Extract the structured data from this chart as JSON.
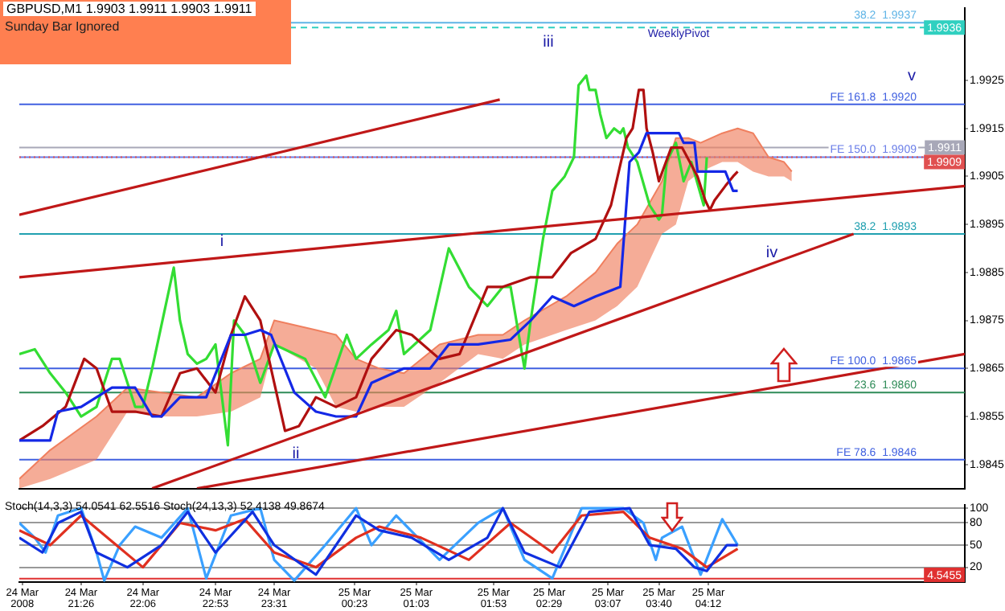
{
  "chart_data": [
    {
      "type": "line",
      "title": "GBPUSD,M1  1.9903 1.9911 1.9903 1.9911",
      "subtitle": "Sunday Bar Ignored",
      "tick_labels": "y",
      "grid": false,
      "xlim": [
        "2008-03-24T20:46",
        "2008-03-25T06:58"
      ],
      "ylim": [
        1.984,
        1.994
      ],
      "yticks": [
        1.9845,
        1.9855,
        1.9865,
        1.9875,
        1.9885,
        1.9895,
        1.9905,
        1.9915,
        1.9925
      ],
      "series": [
        {
          "color": "#f08060",
          "x": [
            "2008-03-24T20:46",
            "2008-03-24T21:06",
            "2008-03-24T21:36",
            "2008-03-24T21:56",
            "2008-03-24T22:18",
            "2008-03-24T22:41",
            "2008-03-24T23:03",
            "2008-03-24T23:22",
            "2008-03-24T23:31",
            "2008-03-24T23:58",
            "2008-03-25T00:11",
            "2008-03-25T00:24",
            "2008-03-25T00:39",
            "2008-03-25T00:55",
            "2008-03-25T01:18",
            "2008-03-25T01:43",
            "2008-03-25T01:59",
            "2008-03-25T02:13",
            "2008-03-25T02:40",
            "2008-03-25T02:59",
            "2008-03-25T03:13",
            "2008-03-25T03:26",
            "2008-03-25T03:42",
            "2008-03-25T03:51",
            "2008-03-25T03:59",
            "2008-03-25T04:07",
            "2008-03-25T04:21",
            "2008-03-25T04:31",
            "2008-03-25T04:41",
            "2008-03-25T04:51",
            "2008-03-25T05:01",
            "2008-03-25T05:06"
          ],
          "values": [
            1.9842,
            1.9848,
            1.9855,
            1.9861,
            1.986,
            1.9859,
            1.9864,
            1.9867,
            1.9875,
            1.9873,
            1.9872,
            1.9867,
            1.9865,
            1.9864,
            1.987,
            1.9872,
            1.9872,
            1.9875,
            1.988,
            1.9885,
            1.9891,
            1.9895,
            1.9904,
            1.9913,
            1.9913,
            1.9912,
            1.9914,
            1.9915,
            1.9914,
            1.9909,
            1.9908,
            1.9906
          ],
          "lower": [
            1.984,
            1.9842,
            1.9846,
            1.9856,
            1.9855,
            1.9855,
            1.9856,
            1.9859,
            1.987,
            1.9865,
            1.9857,
            1.9856,
            1.9857,
            1.9857,
            1.9862,
            1.9868,
            1.9867,
            1.987,
            1.9873,
            1.9875,
            1.9878,
            1.9882,
            1.9893,
            1.9895,
            1.9904,
            1.9906,
            1.9908,
            1.9908,
            1.9906,
            1.9905,
            1.9905,
            1.9904
          ],
          "upper": [
            1.9842,
            1.9848,
            1.9855,
            1.9861,
            1.986,
            1.9859,
            1.9864,
            1.9867,
            1.9875,
            1.9873,
            1.9872,
            1.9867,
            1.9865,
            1.9864,
            1.987,
            1.9872,
            1.9872,
            1.9875,
            1.988,
            1.9885,
            1.9891,
            1.9895,
            1.9904,
            1.9913,
            1.9913,
            1.9912,
            1.9914,
            1.9915,
            1.9914,
            1.9909,
            1.9908,
            1.9906
          ]
        },
        {
          "color": "#33dd33",
          "x": [
            "2008-03-24T20:46",
            "2008-03-24T20:56",
            "2008-03-24T21:06",
            "2008-03-24T21:16",
            "2008-03-24T21:26",
            "2008-03-24T21:36",
            "2008-03-24T21:46",
            "2008-03-24T21:51",
            "2008-03-24T21:56",
            "2008-03-24T22:01",
            "2008-03-24T22:06",
            "2008-03-24T22:12",
            "2008-03-24T22:26",
            "2008-03-24T22:30",
            "2008-03-24T22:35",
            "2008-03-24T22:41",
            "2008-03-24T22:47",
            "2008-03-24T22:53",
            "2008-03-24T23:01",
            "2008-03-24T23:05",
            "2008-03-24T23:12",
            "2008-03-24T23:22",
            "2008-03-24T23:31",
            "2008-03-24T23:51",
            "2008-03-25T00:04",
            "2008-03-25T00:18",
            "2008-03-25T00:24",
            "2008-03-25T00:34",
            "2008-03-25T00:45",
            "2008-03-25T00:50",
            "2008-03-25T00:55",
            "2008-03-25T01:12",
            "2008-03-25T01:24",
            "2008-03-25T01:37",
            "2008-03-25T01:49",
            "2008-03-25T01:59",
            "2008-03-25T02:04",
            "2008-03-25T02:13",
            "2008-03-25T02:17",
            "2008-03-25T02:25",
            "2008-03-25T02:31",
            "2008-03-25T02:39",
            "2008-03-25T02:45",
            "2008-03-25T02:48",
            "2008-03-25T02:53",
            "2008-03-25T02:55",
            "2008-03-25T02:59",
            "2008-03-25T03:02",
            "2008-03-25T03:06",
            "2008-03-25T03:11",
            "2008-03-25T03:15",
            "2008-03-25T03:17",
            "2008-03-25T03:20",
            "2008-03-25T03:26",
            "2008-03-25T03:34",
            "2008-03-25T03:40",
            "2008-03-25T03:42",
            "2008-03-25T03:45",
            "2008-03-25T03:51",
            "2008-03-25T03:56",
            "2008-03-25T04:01",
            "2008-03-25T04:09",
            "2008-03-25T04:11"
          ],
          "values": [
            1.9868,
            1.9869,
            1.9864,
            1.986,
            1.9855,
            1.9857,
            1.9867,
            1.9867,
            1.9862,
            1.9857,
            1.9857,
            1.9865,
            1.9886,
            1.9875,
            1.9868,
            1.9866,
            1.9867,
            1.987,
            1.9849,
            1.9875,
            1.9872,
            1.9862,
            1.987,
            1.9867,
            1.9859,
            1.9872,
            1.9867,
            1.987,
            1.9873,
            1.9877,
            1.9868,
            1.9873,
            1.989,
            1.9882,
            1.9878,
            1.9882,
            1.9882,
            1.9865,
            1.9875,
            1.9892,
            1.9902,
            1.9905,
            1.9909,
            1.9924,
            1.9926,
            1.9923,
            1.9923,
            1.9918,
            1.9913,
            1.9915,
            1.9914,
            1.9915,
            1.9911,
            1.9908,
            1.9899,
            1.9896,
            1.9897,
            1.9908,
            1.9912,
            1.9904,
            1.9908,
            1.9899,
            1.9909
          ]
        },
        {
          "color": "#b01010",
          "x": [
            "2008-03-24T20:46",
            "2008-03-24T21:01",
            "2008-03-24T21:16",
            "2008-03-24T21:28",
            "2008-03-24T21:36",
            "2008-03-24T21:46",
            "2008-03-24T22:01",
            "2008-03-24T22:18",
            "2008-03-24T22:30",
            "2008-03-24T22:41",
            "2008-03-24T22:53",
            "2008-03-24T23:03",
            "2008-03-24T23:12",
            "2008-03-24T23:22",
            "2008-03-24T23:31",
            "2008-03-24T23:38",
            "2008-03-24T23:47",
            "2008-03-24T23:58",
            "2008-03-25T00:11",
            "2008-03-25T00:24",
            "2008-03-25T00:34",
            "2008-03-25T00:50",
            "2008-03-25T01:00",
            "2008-03-25T01:18",
            "2008-03-25T01:31",
            "2008-03-25T01:49",
            "2008-03-25T01:59",
            "2008-03-25T02:08",
            "2008-03-25T02:17",
            "2008-03-25T02:31",
            "2008-03-25T02:43",
            "2008-03-25T02:59",
            "2008-03-25T03:09",
            "2008-03-25T03:19",
            "2008-03-25T03:23",
            "2008-03-25T03:27",
            "2008-03-25T03:30",
            "2008-03-25T03:32",
            "2008-03-25T03:36",
            "2008-03-25T03:40",
            "2008-03-25T03:48",
            "2008-03-25T03:55",
            "2008-03-25T04:05",
            "2008-03-25T04:10",
            "2008-03-25T04:13",
            "2008-03-25T04:16",
            "2008-03-25T04:23",
            "2008-03-25T04:28",
            "2008-03-25T04:31"
          ],
          "values": [
            1.985,
            1.9853,
            1.9857,
            1.9867,
            1.9865,
            1.9856,
            1.9856,
            1.9855,
            1.9864,
            1.9865,
            1.986,
            1.9872,
            1.988,
            1.9875,
            1.9862,
            1.9852,
            1.9853,
            1.9859,
            1.9857,
            1.9859,
            1.9867,
            1.9873,
            1.9872,
            1.9867,
            1.9868,
            1.9882,
            1.9882,
            1.9883,
            1.9884,
            1.9884,
            1.9889,
            1.9892,
            1.9899,
            1.9913,
            1.9915,
            1.9923,
            1.9923,
            1.9915,
            1.991,
            1.9904,
            1.9911,
            1.9911,
            1.9905,
            1.99,
            1.9898,
            1.99,
            1.9903,
            1.9905,
            1.9906
          ]
        },
        {
          "color": "#1428e6",
          "x": [
            "2008-03-24T20:46",
            "2008-03-24T21:06",
            "2008-03-24T21:11",
            "2008-03-24T21:26",
            "2008-03-24T21:46",
            "2008-03-24T22:01",
            "2008-03-24T22:12",
            "2008-03-24T22:18",
            "2008-03-24T22:30",
            "2008-03-24T22:47",
            "2008-03-24T23:03",
            "2008-03-24T23:12",
            "2008-03-24T23:22",
            "2008-03-24T23:29",
            "2008-03-24T23:44",
            "2008-03-24T23:58",
            "2008-03-25T00:11",
            "2008-03-25T00:24",
            "2008-03-25T00:34",
            "2008-03-25T00:55",
            "2008-03-25T01:12",
            "2008-03-25T01:24",
            "2008-03-25T01:43",
            "2008-03-25T02:04",
            "2008-03-25T02:17",
            "2008-03-25T02:31",
            "2008-03-25T02:45",
            "2008-03-25T02:59",
            "2008-03-25T03:15",
            "2008-03-25T03:21",
            "2008-03-25T03:27",
            "2008-03-25T03:32",
            "2008-03-25T03:53",
            "2008-03-25T03:56",
            "2008-03-25T04:03",
            "2008-03-25T04:05",
            "2008-03-25T04:23",
            "2008-03-25T04:28",
            "2008-03-25T04:31"
          ],
          "values": [
            1.985,
            1.985,
            1.9856,
            1.9857,
            1.9861,
            1.9861,
            1.9855,
            1.9855,
            1.9859,
            1.9859,
            1.9872,
            1.9872,
            1.9873,
            1.9872,
            1.986,
            1.9856,
            1.9855,
            1.9855,
            1.9862,
            1.9865,
            1.9865,
            1.987,
            1.987,
            1.9871,
            1.9875,
            1.988,
            1.9878,
            1.988,
            1.9882,
            1.9908,
            1.991,
            1.9914,
            1.9914,
            1.9912,
            1.9912,
            1.9906,
            1.9906,
            1.9902,
            1.9902
          ]
        },
        {
          "color": "#c01818",
          "x": [
            "2008-03-24T20:46",
            "2008-03-25T01:57"
          ],
          "values": [
            1.9897,
            1.9921
          ]
        },
        {
          "color": "#c01818",
          "x": [
            "2008-03-24T20:46",
            "2008-03-25T06:58"
          ],
          "values": [
            1.9884,
            1.9903
          ]
        },
        {
          "color": "#c01818",
          "x": [
            "2008-03-24T22:12",
            "2008-03-25T05:46"
          ],
          "values": [
            1.984,
            1.9893
          ]
        },
        {
          "color": "#c01818",
          "x": [
            "2008-03-24T22:41",
            "2008-03-25T06:58"
          ],
          "values": [
            1.984,
            1.9868
          ]
        }
      ],
      "ref_lines": [
        {
          "axis": "y",
          "value": 1.9937,
          "label": "38.2  1.9937",
          "color": "#5fb4e6"
        },
        {
          "axis": "y",
          "value": 1.9936,
          "label": "1.9936",
          "color": "#30d0c0",
          "line_style": "dashed"
        },
        {
          "axis": "y",
          "value": 1.992,
          "label": "FE 161.8  1.9920",
          "color": "#4060e0"
        },
        {
          "axis": "y",
          "value": 1.9911,
          "label": "1.9911",
          "color": "#a8a8b8"
        },
        {
          "axis": "y",
          "value": 1.9909,
          "label": "FE 150.0  1.9909",
          "color": "#6a7ee8"
        },
        {
          "axis": "y",
          "value": 1.9909,
          "label": "1.9909",
          "color": "#e05050",
          "line_style": "dotted"
        },
        {
          "axis": "y",
          "value": 1.9893,
          "label": "38.2  1.9893",
          "color": "#20a0b0"
        },
        {
          "axis": "y",
          "value": 1.9865,
          "label": "FE 100.0  1.9865",
          "color": "#4060e0"
        },
        {
          "axis": "y",
          "value": 1.986,
          "label": "23.6  1.9860",
          "color": "#2e8b57"
        },
        {
          "axis": "y",
          "value": 1.9846,
          "label": "FE 78.6  1.9846",
          "color": "#4060e0"
        }
      ],
      "annotations": [
        "WeeklyPivot",
        "i",
        "ii",
        "iii",
        "iv",
        "v"
      ]
    },
    {
      "type": "line",
      "title": "Stoch(14,3,3) 54.0541 62.5516  Stoch(24,13,3) 52.4138 49.8674",
      "grid": "y",
      "xlim": [
        "2008-03-24T20:46",
        "2008-03-25T06:58"
      ],
      "ylim": [
        0,
        104
      ],
      "yticks": [
        20,
        50,
        80,
        100
      ],
      "xticks": [
        {
          "value": "2008-03-24T20:48",
          "label": "24 Mar 2008"
        },
        {
          "value": "2008-03-24T21:26",
          "label": "24 Mar 21:26"
        },
        {
          "value": "2008-03-24T22:06",
          "label": "24 Mar 22:06"
        },
        {
          "value": "2008-03-24T22:53",
          "label": "24 Mar 22:53"
        },
        {
          "value": "2008-03-24T23:31",
          "label": "24 Mar 23:31"
        },
        {
          "value": "2008-03-25T00:23",
          "label": "25 Mar 00:23"
        },
        {
          "value": "2008-03-25T01:03",
          "label": "25 Mar 01:03"
        },
        {
          "value": "2008-03-25T01:53",
          "label": "25 Mar 01:53"
        },
        {
          "value": "2008-03-25T02:29",
          "label": "25 Mar 02:29"
        },
        {
          "value": "2008-03-25T03:07",
          "label": "25 Mar 03:07"
        },
        {
          "value": "2008-03-25T03:40",
          "label": "25 Mar 03:40"
        },
        {
          "value": "2008-03-25T04:12",
          "label": "25 Mar 04:12"
        }
      ],
      "series": [
        {
          "color": "#3aa0ff",
          "x": [
            "2008-03-24T20:46",
            "2008-03-24T20:56",
            "2008-03-24T21:03",
            "2008-03-24T21:11",
            "2008-03-24T21:26",
            "2008-03-24T21:36",
            "2008-03-24T21:41",
            "2008-03-24T21:51",
            "2008-03-24T22:01",
            "2008-03-24T22:18",
            "2008-03-24T22:35",
            "2008-03-24T22:47",
            "2008-03-24T23:03",
            "2008-03-24T23:22",
            "2008-03-24T23:31",
            "2008-03-24T23:44",
            "2008-03-25T00:04",
            "2008-03-25T00:24",
            "2008-03-25T00:34",
            "2008-03-25T00:50",
            "2008-03-25T01:18",
            "2008-03-25T01:43",
            "2008-03-25T01:59",
            "2008-03-25T02:13",
            "2008-03-25T02:31",
            "2008-03-25T02:50",
            "2008-03-25T03:17",
            "2008-03-25T03:30",
            "2008-03-25T03:38",
            "2008-03-25T03:42",
            "2008-03-25T03:55",
            "2008-03-25T04:07",
            "2008-03-25T04:21",
            "2008-03-25T04:31"
          ],
          "values": [
            80,
            60,
            40,
            90,
            100,
            40,
            2,
            50,
            75,
            60,
            100,
            5,
            90,
            100,
            30,
            2,
            50,
            100,
            50,
            90,
            30,
            80,
            100,
            30,
            5,
            100,
            100,
            80,
            30,
            60,
            75,
            10,
            85,
            50
          ]
        },
        {
          "color": "#e03020",
          "x": [
            "2008-03-24T20:46",
            "2008-03-24T21:06",
            "2008-03-24T21:26",
            "2008-03-24T21:46",
            "2008-03-24T22:06",
            "2008-03-24T22:30",
            "2008-03-24T22:53",
            "2008-03-24T23:12",
            "2008-03-24T23:31",
            "2008-03-24T23:58",
            "2008-03-25T00:24",
            "2008-03-25T00:39",
            "2008-03-25T01:06",
            "2008-03-25T01:37",
            "2008-03-25T02:04",
            "2008-03-25T02:31",
            "2008-03-25T02:50",
            "2008-03-25T03:17",
            "2008-03-25T03:34",
            "2008-03-25T03:55",
            "2008-03-25T04:11",
            "2008-03-25T04:31"
          ],
          "values": [
            70,
            50,
            90,
            55,
            20,
            80,
            70,
            85,
            40,
            20,
            60,
            75,
            60,
            30,
            80,
            40,
            90,
            95,
            60,
            45,
            20,
            45
          ]
        },
        {
          "color": "#1030e0",
          "x": [
            "2008-03-24T20:46",
            "2008-03-24T21:01",
            "2008-03-24T21:11",
            "2008-03-24T21:26",
            "2008-03-24T21:36",
            "2008-03-24T21:56",
            "2008-03-24T22:18",
            "2008-03-24T22:35",
            "2008-03-24T22:53",
            "2008-03-24T23:17",
            "2008-03-24T23:31",
            "2008-03-24T23:58",
            "2008-03-25T00:24",
            "2008-03-25T00:39",
            "2008-03-25T01:00",
            "2008-03-25T01:24",
            "2008-03-25T01:49",
            "2008-03-25T01:59",
            "2008-03-25T02:13",
            "2008-03-25T02:36",
            "2008-03-25T02:55",
            "2008-03-25T03:21",
            "2008-03-25T03:34",
            "2008-03-25T03:51",
            "2008-03-25T04:03",
            "2008-03-25T04:11",
            "2008-03-25T04:24",
            "2008-03-25T04:31"
          ],
          "values": [
            60,
            40,
            80,
            95,
            40,
            20,
            50,
            95,
            40,
            95,
            50,
            10,
            90,
            70,
            60,
            30,
            60,
            100,
            40,
            20,
            95,
            100,
            50,
            45,
            20,
            15,
            50,
            50
          ]
        }
      ],
      "ref_lines": [
        {
          "axis": "y",
          "value": 4.5455,
          "label": "4.5455",
          "color": "#e03030"
        }
      ]
    }
  ]
}
